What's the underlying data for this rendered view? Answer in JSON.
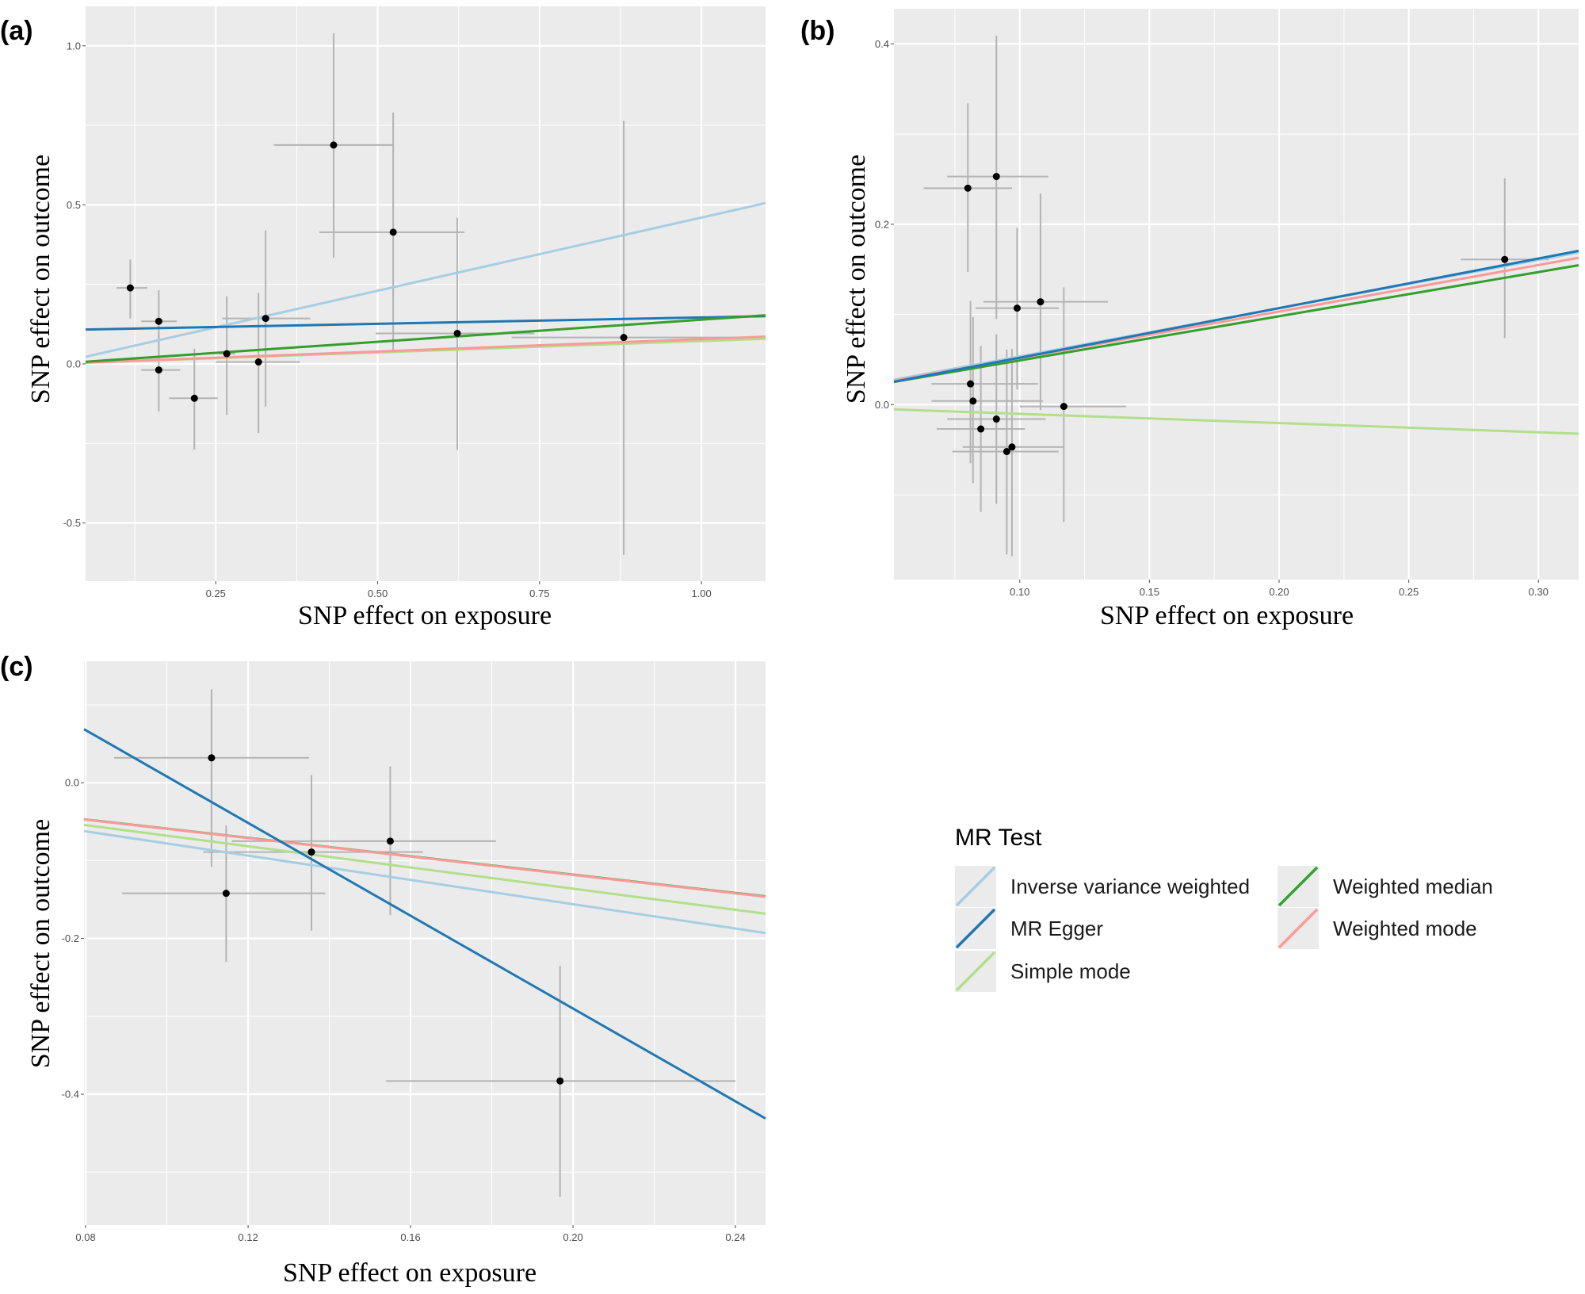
{
  "legend": {
    "title": "MR Test",
    "items": [
      {
        "name": "Inverse variance weighted",
        "color": "#a6cee3"
      },
      {
        "name": "MR Egger",
        "color": "#1f78b4"
      },
      {
        "name": "Simple mode",
        "color": "#b2df8a"
      },
      {
        "name": "Weighted median",
        "color": "#33a02c"
      },
      {
        "name": "Weighted mode",
        "color": "#fb9a99"
      }
    ]
  },
  "style": {
    "panel_background": "#ebebeb",
    "grid_color": "#ffffff",
    "point_color": "#000000",
    "errorbar_color": "#b3b3b3"
  },
  "chart_data": [
    {
      "type": "scatter",
      "panel_label": "(a)",
      "xlabel": "SNP effect on exposure",
      "ylabel": "SNP effect on outcome",
      "xlim": [
        0.049,
        1.099
      ],
      "ylim": [
        -0.683,
        1.124
      ],
      "grid": true,
      "xticks": [
        0.25,
        0.5,
        0.75,
        1.0
      ],
      "xtick_labels": [
        "0.25",
        "0.50",
        "0.75",
        "1.00"
      ],
      "yticks": [
        -0.5,
        0.0,
        0.5,
        1.0
      ],
      "ytick_labels": [
        "-0.5",
        "0.0",
        "0.5",
        "1.0"
      ],
      "points": [
        {
          "x": 0.118,
          "y": 0.239,
          "x_lo": 0.097,
          "x_hi": 0.144,
          "y_lo": 0.143,
          "y_hi": 0.328
        },
        {
          "x": 0.162,
          "y": 0.134,
          "x_lo": 0.135,
          "x_hi": 0.19,
          "y_lo": 0.04,
          "y_hi": 0.232
        },
        {
          "x": 0.162,
          "y": -0.019,
          "x_lo": 0.135,
          "x_hi": 0.195,
          "y_lo": -0.15,
          "y_hi": 0.1
        },
        {
          "x": 0.217,
          "y": -0.108,
          "x_lo": 0.178,
          "x_hi": 0.253,
          "y_lo": -0.27,
          "y_hi": 0.048
        },
        {
          "x": 0.267,
          "y": 0.032,
          "x_lo": 0.255,
          "x_hi": 0.28,
          "y_lo": -0.16,
          "y_hi": 0.213
        },
        {
          "x": 0.316,
          "y": 0.006,
          "x_lo": 0.25,
          "x_hi": 0.38,
          "y_lo": -0.217,
          "y_hi": 0.223
        },
        {
          "x": 0.327,
          "y": 0.143,
          "x_lo": 0.26,
          "x_hi": 0.396,
          "y_lo": -0.134,
          "y_hi": 0.42
        },
        {
          "x": 0.432,
          "y": 0.688,
          "x_lo": 0.34,
          "x_hi": 0.525,
          "y_lo": 0.334,
          "y_hi": 1.04
        },
        {
          "x": 0.524,
          "y": 0.414,
          "x_lo": 0.41,
          "x_hi": 0.634,
          "y_lo": 0.04,
          "y_hi": 0.79
        },
        {
          "x": 0.623,
          "y": 0.096,
          "x_lo": 0.497,
          "x_hi": 0.742,
          "y_lo": -0.27,
          "y_hi": 0.459
        },
        {
          "x": 0.88,
          "y": 0.083,
          "x_lo": 0.707,
          "x_hi": 1.053,
          "y_lo": -0.6,
          "y_hi": 0.764
        }
      ],
      "lines": [
        {
          "method": "Inverse variance weighted",
          "slope": 0.46,
          "intercept": 0.0
        },
        {
          "method": "MR Egger",
          "slope": 0.04,
          "intercept": 0.106
        },
        {
          "method": "Simple mode",
          "slope": 0.072,
          "intercept": 0.0
        },
        {
          "method": "Weighted mode",
          "slope": 0.078,
          "intercept": 0.0
        },
        {
          "method": "Weighted median",
          "slope": 0.139,
          "intercept": 0.0
        }
      ]
    },
    {
      "type": "scatter",
      "panel_label": "(b)",
      "xlabel": "SNP effect on exposure",
      "ylabel": "SNP effect on outcome",
      "xlim": [
        0.0515,
        0.3155
      ],
      "ylim": [
        -0.194,
        0.439
      ],
      "grid": true,
      "xticks": [
        0.1,
        0.15,
        0.2,
        0.25,
        0.3
      ],
      "xtick_labels": [
        "0.10",
        "0.15",
        "0.20",
        "0.25",
        "0.30"
      ],
      "yticks": [
        0.0,
        0.2,
        0.4
      ],
      "ytick_labels": [
        "0.0",
        "0.2",
        "0.4"
      ],
      "points": [
        {
          "x": 0.08,
          "y": 0.24,
          "x_lo": 0.063,
          "x_hi": 0.097,
          "y_lo": 0.147,
          "y_hi": 0.334
        },
        {
          "x": 0.091,
          "y": 0.253,
          "x_lo": 0.072,
          "x_hi": 0.111,
          "y_lo": 0.095,
          "y_hi": 0.409
        },
        {
          "x": 0.099,
          "y": 0.107,
          "x_lo": 0.083,
          "x_hi": 0.115,
          "y_lo": 0.017,
          "y_hi": 0.196
        },
        {
          "x": 0.108,
          "y": 0.114,
          "x_lo": 0.086,
          "x_hi": 0.134,
          "y_lo": -0.006,
          "y_hi": 0.234
        },
        {
          "x": 0.081,
          "y": 0.023,
          "x_lo": 0.066,
          "x_hi": 0.107,
          "y_lo": -0.065,
          "y_hi": 0.115
        },
        {
          "x": 0.082,
          "y": 0.004,
          "x_lo": 0.066,
          "x_hi": 0.109,
          "y_lo": -0.087,
          "y_hi": 0.097
        },
        {
          "x": 0.117,
          "y": -0.002,
          "x_lo": 0.1,
          "x_hi": 0.141,
          "y_lo": -0.13,
          "y_hi": 0.13
        },
        {
          "x": 0.091,
          "y": -0.016,
          "x_lo": 0.072,
          "x_hi": 0.11,
          "y_lo": -0.11,
          "y_hi": 0.078
        },
        {
          "x": 0.085,
          "y": -0.027,
          "x_lo": 0.068,
          "x_hi": 0.102,
          "y_lo": -0.119,
          "y_hi": 0.065
        },
        {
          "x": 0.097,
          "y": -0.047,
          "x_lo": 0.078,
          "x_hi": 0.117,
          "y_lo": -0.168,
          "y_hi": 0.062
        },
        {
          "x": 0.095,
          "y": -0.052,
          "x_lo": 0.074,
          "x_hi": 0.115,
          "y_lo": -0.166,
          "y_hi": 0.061
        },
        {
          "x": 0.287,
          "y": 0.161,
          "x_lo": 0.27,
          "x_hi": 0.304,
          "y_lo": 0.074,
          "y_hi": 0.251
        }
      ],
      "lines": [
        {
          "method": "Inverse variance weighted",
          "slope": 0.535,
          "intercept": 0.0
        },
        {
          "method": "Simple mode",
          "slope": -0.102,
          "intercept": 0.0
        },
        {
          "method": "Weighted median",
          "slope": 0.49,
          "intercept": 0.0
        },
        {
          "method": "Weighted mode",
          "slope": 0.516,
          "intercept": 0.0
        },
        {
          "method": "MR Egger",
          "slope": 0.55,
          "intercept": -0.003
        }
      ]
    },
    {
      "type": "scatter",
      "panel_label": "(c)",
      "xlabel": "SNP effect on exposure",
      "ylabel": "SNP effect on outcome",
      "xlim": [
        0.0796,
        0.2474
      ],
      "ylim": [
        -0.568,
        0.156
      ],
      "grid": true,
      "xticks": [
        0.08,
        0.12,
        0.16,
        0.2,
        0.24
      ],
      "xtick_labels": [
        "0.08",
        "0.12",
        "0.16",
        "0.20",
        "0.24"
      ],
      "yticks": [
        -0.4,
        -0.2,
        0.0
      ],
      "ytick_labels": [
        "-0.4",
        "-0.2",
        "0.0"
      ],
      "points": [
        {
          "x": 0.111,
          "y": 0.032,
          "x_lo": 0.087,
          "x_hi": 0.135,
          "y_lo": -0.108,
          "y_hi": 0.12
        },
        {
          "x": 0.1146,
          "y": -0.142,
          "x_lo": 0.089,
          "x_hi": 0.139,
          "y_lo": -0.23,
          "y_hi": -0.055
        },
        {
          "x": 0.1356,
          "y": -0.089,
          "x_lo": 0.109,
          "x_hi": 0.163,
          "y_lo": -0.19,
          "y_hi": 0.01
        },
        {
          "x": 0.155,
          "y": -0.075,
          "x_lo": 0.116,
          "x_hi": 0.181,
          "y_lo": -0.17,
          "y_hi": 0.021
        },
        {
          "x": 0.1968,
          "y": -0.383,
          "x_lo": 0.154,
          "x_hi": 0.24,
          "y_lo": -0.532,
          "y_hi": -0.235
        }
      ],
      "lines": [
        {
          "method": "Inverse variance weighted",
          "slope": -0.78,
          "intercept": 0.0
        },
        {
          "method": "Simple mode",
          "slope": -0.68,
          "intercept": 0.0
        },
        {
          "method": "Weighted median",
          "slope": -0.59,
          "intercept": 0.0
        },
        {
          "method": "Weighted mode",
          "slope": -0.592,
          "intercept": 0.0
        },
        {
          "method": "MR Egger",
          "slope": -2.98,
          "intercept": 0.306
        }
      ]
    }
  ]
}
